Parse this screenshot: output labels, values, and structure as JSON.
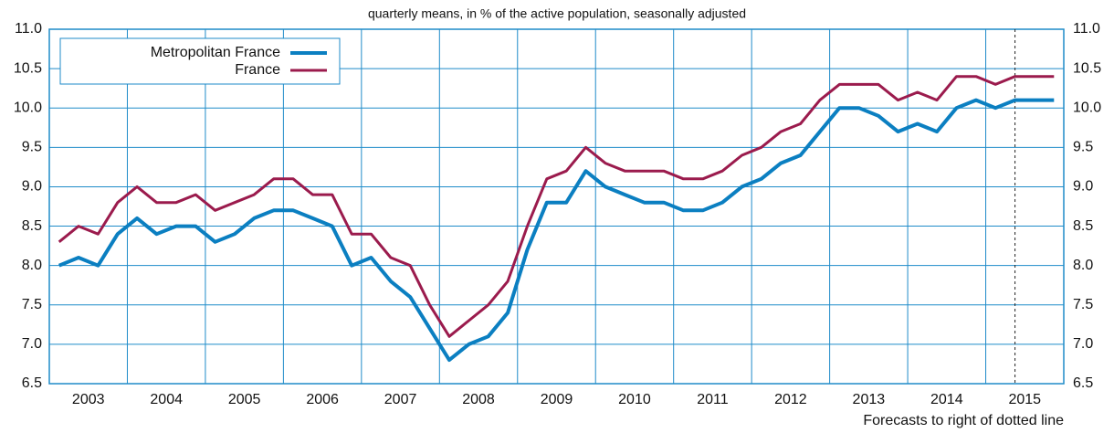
{
  "chart_data": {
    "type": "line",
    "subtitle": "quarterly means, in % of the active population, seasonally adjusted",
    "note": "Forecasts to right of dotted line",
    "forecast_start": 2015.375,
    "x": [
      2003.125,
      2003.375,
      2003.625,
      2003.875,
      2004.125,
      2004.375,
      2004.625,
      2004.875,
      2005.125,
      2005.375,
      2005.625,
      2005.875,
      2006.125,
      2006.375,
      2006.625,
      2006.875,
      2007.125,
      2007.375,
      2007.625,
      2007.875,
      2008.125,
      2008.375,
      2008.625,
      2008.875,
      2009.125,
      2009.375,
      2009.625,
      2009.875,
      2010.125,
      2010.375,
      2010.625,
      2010.875,
      2011.125,
      2011.375,
      2011.625,
      2011.875,
      2012.125,
      2012.375,
      2012.625,
      2012.875,
      2013.125,
      2013.375,
      2013.625,
      2013.875,
      2014.125,
      2014.375,
      2014.625,
      2014.875,
      2015.125,
      2015.375,
      2015.625,
      2015.875
    ],
    "series": [
      {
        "name": "Metropolitan France",
        "color": "#0b7fc1",
        "width": 4,
        "values": [
          8.0,
          8.1,
          8.0,
          8.4,
          8.6,
          8.4,
          8.5,
          8.5,
          8.3,
          8.4,
          8.6,
          8.7,
          8.7,
          8.6,
          8.5,
          8.0,
          8.1,
          7.8,
          7.6,
          7.2,
          6.8,
          7.0,
          7.1,
          7.4,
          8.2,
          8.8,
          8.8,
          9.2,
          9.0,
          8.9,
          8.8,
          8.8,
          8.7,
          8.7,
          8.8,
          9.0,
          9.1,
          9.3,
          9.4,
          9.7,
          10.0,
          10.0,
          9.9,
          9.7,
          9.8,
          9.7,
          10.0,
          10.1,
          10.0,
          10.1,
          10.1,
          10.1
        ]
      },
      {
        "name": "France",
        "color": "#9b1b4d",
        "width": 3,
        "values": [
          8.3,
          8.5,
          8.4,
          8.8,
          9.0,
          8.8,
          8.8,
          8.9,
          8.7,
          8.8,
          8.9,
          9.1,
          9.1,
          8.9,
          8.9,
          8.4,
          8.4,
          8.1,
          8.0,
          7.5,
          7.1,
          7.3,
          7.5,
          7.8,
          8.5,
          9.1,
          9.2,
          9.5,
          9.3,
          9.2,
          9.2,
          9.2,
          9.1,
          9.1,
          9.2,
          9.4,
          9.5,
          9.7,
          9.8,
          10.1,
          10.3,
          10.3,
          10.3,
          10.1,
          10.2,
          10.1,
          10.4,
          10.4,
          10.3,
          10.4,
          10.4,
          10.4
        ]
      }
    ],
    "xlim": [
      2003,
      2016
    ],
    "xticks": [
      2003,
      2004,
      2005,
      2006,
      2007,
      2008,
      2009,
      2010,
      2011,
      2012,
      2013,
      2014,
      2015
    ],
    "ylim": [
      6.5,
      11
    ],
    "yticks": [
      6.5,
      {
        "value": 7,
        "label": "7.0"
      },
      7.5,
      {
        "value": 8,
        "label": "8.0"
      },
      8.5,
      {
        "value": 9,
        "label": "9.0"
      },
      9.5,
      {
        "value": 10,
        "label": "10.0"
      },
      10.5,
      {
        "value": 11,
        "label": "11.0"
      }
    ],
    "grid": true,
    "legend": "upper left"
  }
}
